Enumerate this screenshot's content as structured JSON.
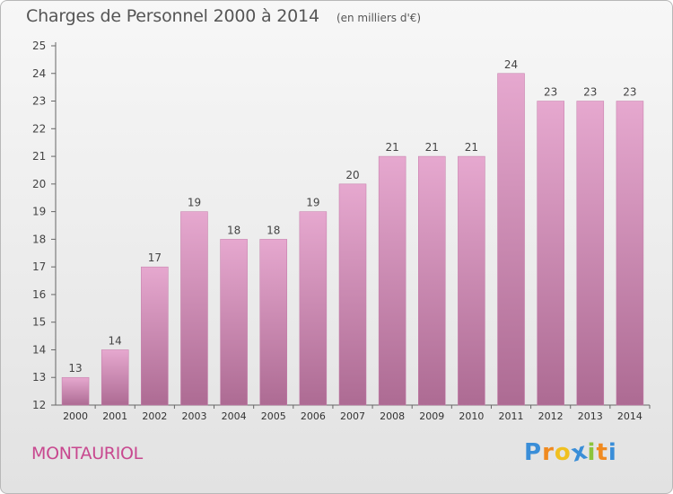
{
  "title": "Charges de Personnel 2000 à 2014",
  "unit": "(en milliers d'€)",
  "place": "MONTAURIOL",
  "logo": {
    "letters": [
      "P",
      "r",
      "o",
      "x",
      "i",
      "t",
      "i"
    ],
    "colors": [
      "#3a8ed8",
      "#f08a20",
      "#f0c020",
      "#3a8ed8",
      "#8cc43c",
      "#f08a20",
      "#3a8ed8"
    ]
  },
  "colors": {
    "bar_top": "#e6a8cf",
    "bar_bottom": "#ad6b93",
    "bar_stroke": "#c47aa8"
  },
  "chart_data": {
    "type": "bar",
    "categories": [
      "2000",
      "2001",
      "2002",
      "2003",
      "2004",
      "2005",
      "2006",
      "2007",
      "2008",
      "2009",
      "2010",
      "2011",
      "2012",
      "2013",
      "2014"
    ],
    "values": [
      13,
      14,
      17,
      19,
      18,
      18,
      19,
      20,
      21,
      21,
      21,
      24,
      23,
      23,
      23
    ],
    "ylim": [
      12,
      25
    ],
    "yticks": [
      12,
      13,
      14,
      15,
      16,
      17,
      18,
      19,
      20,
      21,
      22,
      23,
      24,
      25
    ],
    "title": "Charges de Personnel 2000 à 2014",
    "xlabel": "",
    "ylabel": "",
    "grid": false
  }
}
